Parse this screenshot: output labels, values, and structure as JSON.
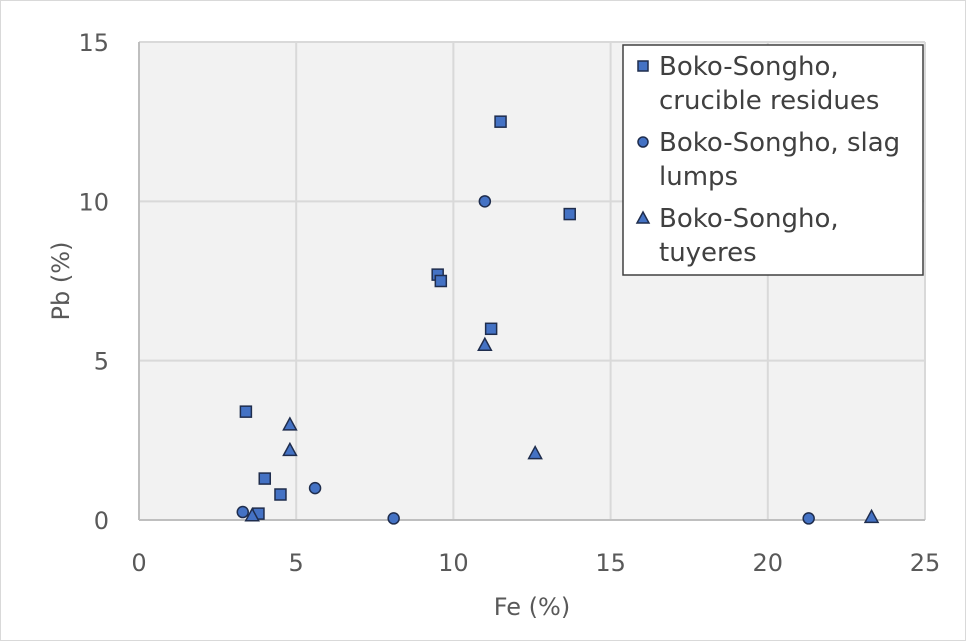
{
  "chart_data": {
    "type": "scatter",
    "xlabel": "Fe (%)",
    "ylabel": "Pb (%)",
    "xlim": [
      0,
      25
    ],
    "ylim": [
      0,
      15
    ],
    "xticks": [
      0,
      5,
      10,
      15,
      20,
      25
    ],
    "yticks": [
      0,
      5,
      10,
      15
    ],
    "grid": true,
    "legend_position": "top-right",
    "colors": {
      "marker_fill": "#4472c4",
      "marker_stroke": "#1f2d4d",
      "plot_bg": "#f2f2f2",
      "grid": "#d9d9d9"
    },
    "series": [
      {
        "name": "Boko-Songho, crucible residues",
        "legend_lines": [
          "Boko-Songho,",
          "crucible residues"
        ],
        "marker": "square",
        "points": [
          {
            "x": 3.4,
            "y": 3.4
          },
          {
            "x": 3.8,
            "y": 0.2
          },
          {
            "x": 4.0,
            "y": 1.3
          },
          {
            "x": 4.5,
            "y": 0.8
          },
          {
            "x": 9.5,
            "y": 7.7
          },
          {
            "x": 9.6,
            "y": 7.5
          },
          {
            "x": 11.2,
            "y": 6.0
          },
          {
            "x": 11.5,
            "y": 12.5
          },
          {
            "x": 13.7,
            "y": 9.6
          }
        ]
      },
      {
        "name": "Boko-Songho, slag lumps",
        "legend_lines": [
          "Boko-Songho, slag",
          "lumps"
        ],
        "marker": "circle",
        "points": [
          {
            "x": 3.3,
            "y": 0.25
          },
          {
            "x": 5.6,
            "y": 1.0
          },
          {
            "x": 8.1,
            "y": 0.05
          },
          {
            "x": 11.0,
            "y": 10.0
          },
          {
            "x": 21.3,
            "y": 0.05
          }
        ]
      },
      {
        "name": "Boko-Songho, tuyeres",
        "legend_lines": [
          "Boko-Songho,",
          "tuyeres"
        ],
        "marker": "triangle",
        "points": [
          {
            "x": 3.6,
            "y": 0.15
          },
          {
            "x": 4.8,
            "y": 2.2
          },
          {
            "x": 4.8,
            "y": 3.0
          },
          {
            "x": 11.0,
            "y": 5.5
          },
          {
            "x": 12.6,
            "y": 2.1
          },
          {
            "x": 23.3,
            "y": 0.1
          }
        ]
      }
    ]
  }
}
